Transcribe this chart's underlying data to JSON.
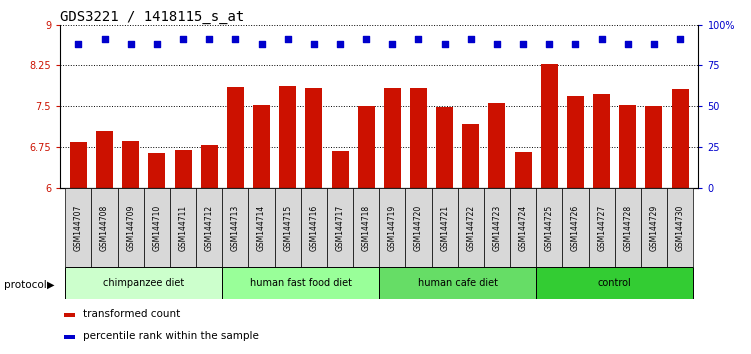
{
  "title": "GDS3221 / 1418115_s_at",
  "samples": [
    "GSM144707",
    "GSM144708",
    "GSM144709",
    "GSM144710",
    "GSM144711",
    "GSM144712",
    "GSM144713",
    "GSM144714",
    "GSM144715",
    "GSM144716",
    "GSM144717",
    "GSM144718",
    "GSM144719",
    "GSM144720",
    "GSM144721",
    "GSM144722",
    "GSM144723",
    "GSM144724",
    "GSM144725",
    "GSM144726",
    "GSM144727",
    "GSM144728",
    "GSM144729",
    "GSM144730"
  ],
  "bar_values": [
    6.84,
    7.04,
    6.85,
    6.63,
    6.69,
    6.78,
    7.85,
    7.53,
    7.87,
    7.83,
    6.68,
    7.5,
    7.83,
    7.83,
    7.48,
    7.18,
    7.55,
    6.65,
    8.28,
    7.68,
    7.72,
    7.52,
    7.5,
    7.82
  ],
  "percentile_values": [
    88,
    91,
    88,
    88,
    91,
    91,
    91,
    88,
    91,
    88,
    88,
    91,
    88,
    91,
    88,
    91,
    88,
    88,
    88,
    88,
    91,
    88,
    88,
    91
  ],
  "groups": [
    {
      "label": "chimpanzee diet",
      "start": 0,
      "end": 6,
      "color": "#ccffcc"
    },
    {
      "label": "human fast food diet",
      "start": 6,
      "end": 12,
      "color": "#99ff99"
    },
    {
      "label": "human cafe diet",
      "start": 12,
      "end": 18,
      "color": "#66dd66"
    },
    {
      "label": "control",
      "start": 18,
      "end": 24,
      "color": "#33cc33"
    }
  ],
  "ylim": [
    6.0,
    9.0
  ],
  "yticks": [
    6.0,
    6.75,
    7.5,
    8.25,
    9.0
  ],
  "ytick_labels": [
    "6",
    "6.75",
    "7.5",
    "8.25",
    "9"
  ],
  "right_yticks": [
    0,
    25,
    50,
    75,
    100
  ],
  "right_ytick_labels": [
    "0",
    "25",
    "50",
    "75",
    "100%"
  ],
  "bar_color": "#cc1100",
  "dot_color": "#0000cc",
  "grid_color": "#000000",
  "title_fontsize": 10,
  "tick_fontsize": 7,
  "legend_items": [
    {
      "color": "#cc1100",
      "label": "transformed count"
    },
    {
      "color": "#0000cc",
      "label": "percentile rank within the sample"
    }
  ]
}
